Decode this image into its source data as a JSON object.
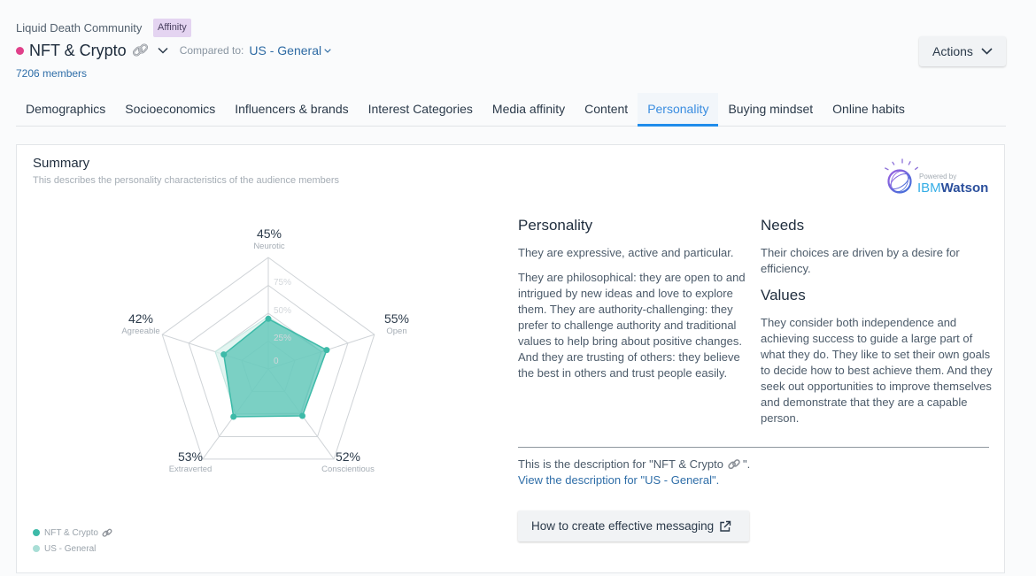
{
  "header": {
    "community": "Liquid Death Community",
    "badge": "Affinity",
    "audience": {
      "name": "NFT & Crypto",
      "icon": "link-icon",
      "dot_color": "#e0408a"
    },
    "compared_label": "Compared to:",
    "compared_value": "US - General",
    "members": "7206 members",
    "actions_label": "Actions"
  },
  "tabs": [
    {
      "label": "Demographics",
      "active": false
    },
    {
      "label": "Socioeconomics",
      "active": false
    },
    {
      "label": "Influencers & brands",
      "active": false
    },
    {
      "label": "Interest Categories",
      "active": false
    },
    {
      "label": "Media affinity",
      "active": false
    },
    {
      "label": "Content",
      "active": false
    },
    {
      "label": "Personality",
      "active": true
    },
    {
      "label": "Buying mindset",
      "active": false
    },
    {
      "label": "Online habits",
      "active": false
    }
  ],
  "summary": {
    "title": "Summary",
    "subtitle": "This describes the personality characteristics of the audience members",
    "powered_by": "Powered by",
    "brand_ibm": "IBM",
    "brand_watson": "Watson"
  },
  "legend": [
    {
      "label": "NFT & Crypto",
      "color": "#3dbaa8",
      "icon": "link-icon"
    },
    {
      "label": "US - General",
      "color": "#a9ded6"
    }
  ],
  "personality": {
    "heading": "Personality",
    "paragraphs": [
      "They are expressive, active and particular.",
      "They are philosophical: they are open to and intrigued by new ideas and love to explore them. They are authority-challenging: they prefer to challenge authority and traditional values to help bring about positive changes. And they are trusting of others: they believe the best in others and trust people easily."
    ]
  },
  "needs": {
    "heading": "Needs",
    "text": "Their choices are driven by a desire for efficiency."
  },
  "values": {
    "heading": "Values",
    "text": "They consider both independence and achieving success to guide a large part of what they do. They like to set their own goals to decide how to best achieve them. And they seek out opportunities to improve themselves and demonstrate that they are a capable person."
  },
  "description": {
    "prefix": "This is the description for \"NFT & Crypto",
    "suffix": "\".",
    "link": "View the description for \"US - General\"."
  },
  "messaging_button": "How to create effective messaging",
  "colors": {
    "accent_blue": "#1f8ceb",
    "link_blue": "#2f6ea8",
    "teal": "#3dbaa8",
    "teal_light": "#a9ded6",
    "audience_pink": "#e0408a",
    "badge_purple": "#e4d4f1"
  },
  "chart_data": {
    "type": "radar",
    "title": "",
    "axes": [
      "Neurotic",
      "Open",
      "Conscientious",
      "Extraverted",
      "Agreeable"
    ],
    "value_labels": [
      "45%",
      "55%",
      "52%",
      "53%",
      "42%"
    ],
    "ring_labels": [
      "0",
      "25%",
      "50%",
      "75%"
    ],
    "rings": [
      25,
      50,
      75,
      100
    ],
    "range": [
      0,
      100
    ],
    "grid": true,
    "legend_position": "bottom-left",
    "series": [
      {
        "name": "US - General",
        "values": [
          47,
          50,
          49,
          50,
          50
        ],
        "color": "#a9ded6",
        "estimated": true
      },
      {
        "name": "NFT & Crypto",
        "values": [
          45,
          55,
          52,
          53,
          42
        ],
        "color": "#3dbaa8"
      }
    ]
  }
}
